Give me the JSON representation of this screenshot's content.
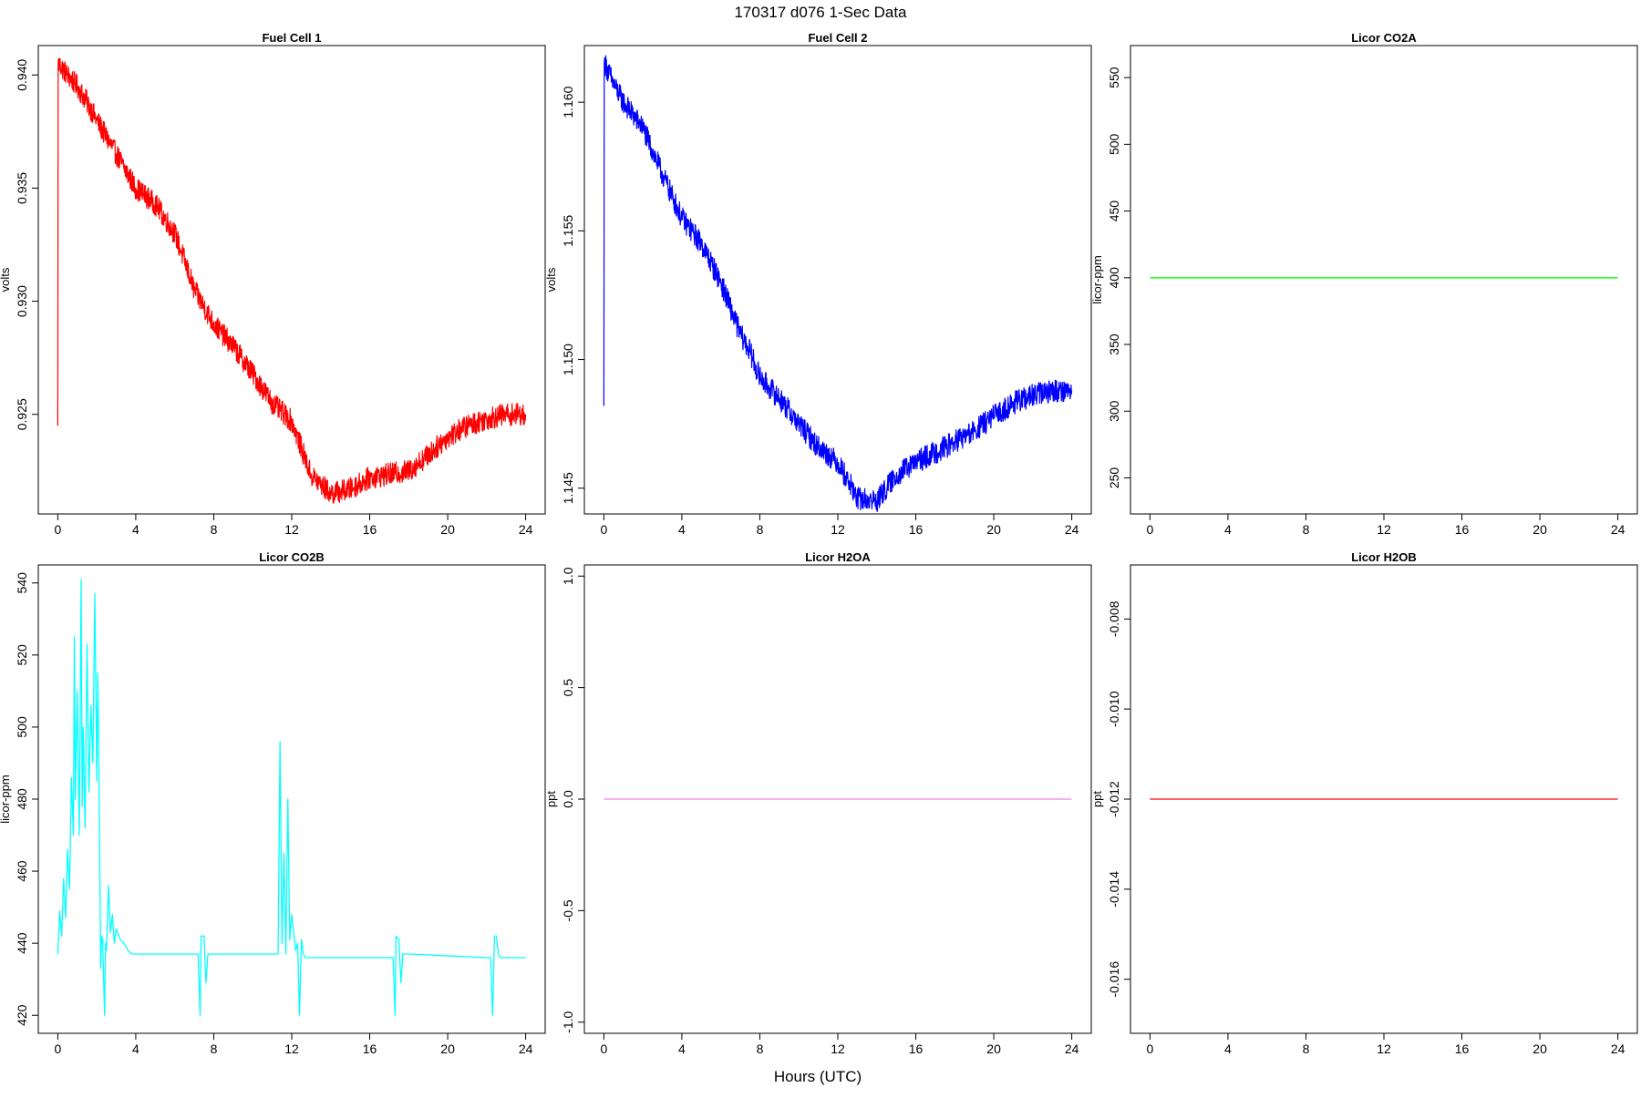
{
  "figure": {
    "title": "170317   d076   1-Sec Data",
    "xlabel": "Hours (UTC)"
  },
  "chart_data": [
    {
      "type": "line",
      "title": "Fuel Cell 1",
      "ylabel": "volts",
      "xlim": [
        -1,
        25
      ],
      "ylim": [
        0.9206,
        0.9413
      ],
      "xticks": [
        0,
        4,
        8,
        12,
        16,
        20,
        24
      ],
      "yticks": [
        0.925,
        0.93,
        0.935,
        0.94
      ],
      "ytick_labels": [
        "0.925",
        "0.930",
        "0.935",
        "0.940"
      ],
      "series": [
        {
          "color": "#ff0000",
          "noise": 0.0005,
          "x": [
            0,
            0.02,
            0.05,
            0.5,
            1,
            1.5,
            2,
            3,
            4,
            5,
            6,
            6.5,
            7,
            8,
            9,
            10,
            11,
            12,
            12.5,
            13,
            14,
            15,
            16,
            18,
            19,
            20,
            21,
            22,
            23,
            24
          ],
          "values": [
            0.9245,
            0.9405,
            0.9405,
            0.94,
            0.9395,
            0.9388,
            0.938,
            0.9365,
            0.935,
            0.9343,
            0.933,
            0.9318,
            0.9305,
            0.929,
            0.928,
            0.9268,
            0.9255,
            0.9247,
            0.9235,
            0.9223,
            0.9215,
            0.9217,
            0.9222,
            0.9225,
            0.9232,
            0.924,
            0.9245,
            0.9248,
            0.925,
            0.925
          ]
        }
      ]
    },
    {
      "type": "line",
      "title": "Fuel Cell 2",
      "ylabel": "volts",
      "xlim": [
        -1,
        25
      ],
      "ylim": [
        1.144,
        1.1622
      ],
      "xticks": [
        0,
        4,
        8,
        12,
        16,
        20,
        24
      ],
      "yticks": [
        1.145,
        1.15,
        1.155,
        1.16
      ],
      "ytick_labels": [
        "1.145",
        "1.150",
        "1.155",
        "1.160"
      ],
      "series": [
        {
          "color": "#0000ff",
          "noise": 0.00045,
          "x": [
            0,
            0.02,
            0.05,
            0.5,
            1,
            2,
            3,
            3.7,
            4,
            5,
            6,
            7,
            7.5,
            8,
            9,
            10,
            11,
            12,
            12.6,
            13,
            14,
            15,
            16,
            17,
            18,
            19,
            20,
            21,
            22,
            23,
            24
          ],
          "values": [
            1.1482,
            1.1615,
            1.1615,
            1.1607,
            1.16,
            1.159,
            1.1572,
            1.156,
            1.1555,
            1.1545,
            1.153,
            1.151,
            1.1503,
            1.1493,
            1.1485,
            1.1475,
            1.1466,
            1.146,
            1.1452,
            1.1446,
            1.1445,
            1.1455,
            1.146,
            1.1464,
            1.1468,
            1.1472,
            1.1478,
            1.1483,
            1.1486,
            1.1488,
            1.1488
          ]
        }
      ]
    },
    {
      "type": "line",
      "title": "Licor CO2A",
      "ylabel": "licor-ppm",
      "xlim": [
        -1,
        25
      ],
      "ylim": [
        223,
        574
      ],
      "xticks": [
        0,
        4,
        8,
        12,
        16,
        20,
        24
      ],
      "yticks": [
        250,
        300,
        350,
        400,
        450,
        500,
        550
      ],
      "ytick_labels": [
        "250",
        "300",
        "350",
        "400",
        "450",
        "500",
        "550"
      ],
      "series": [
        {
          "color": "#00ff00",
          "noise": 0,
          "x": [
            0,
            24
          ],
          "values": [
            400,
            400
          ]
        }
      ]
    },
    {
      "type": "line",
      "title": "Licor CO2B",
      "ylabel": "licor-ppm",
      "xlim": [
        -1,
        25
      ],
      "ylim": [
        415,
        545
      ],
      "xticks": [
        0,
        4,
        8,
        12,
        16,
        20,
        24
      ],
      "yticks": [
        420,
        440,
        460,
        480,
        500,
        520,
        540
      ],
      "ytick_labels": [
        "420",
        "440",
        "460",
        "480",
        "500",
        "520",
        "540"
      ],
      "series": [
        {
          "color": "#00ffff",
          "noise": 0,
          "x": [
            0,
            0.1,
            0.2,
            0.3,
            0.4,
            0.5,
            0.6,
            0.7,
            0.8,
            0.85,
            0.9,
            1.0,
            1.1,
            1.2,
            1.25,
            1.3,
            1.4,
            1.5,
            1.6,
            1.7,
            1.8,
            1.9,
            2.0,
            2.05,
            2.1,
            2.2,
            2.25,
            2.3,
            2.4,
            2.45,
            2.5,
            2.6,
            2.7,
            2.8,
            2.9,
            3.0,
            3.2,
            3.4,
            3.6,
            3.8,
            4.0,
            6.0,
            7.2,
            7.3,
            7.35,
            7.5,
            7.6,
            7.7,
            7.75,
            8.0,
            11.0,
            11.3,
            11.4,
            11.5,
            11.6,
            11.7,
            11.8,
            11.9,
            12.0,
            12.2,
            12.3,
            12.4,
            12.5,
            12.6,
            12.7,
            12.8,
            13.0,
            16.0,
            17.2,
            17.3,
            17.35,
            17.5,
            17.6,
            17.7,
            17.75,
            18.0,
            22.0,
            22.2,
            22.3,
            22.4,
            22.5,
            22.6,
            22.7,
            24.0
          ],
          "values": [
            437,
            449,
            442,
            458,
            447,
            466,
            455,
            486,
            470,
            525,
            480,
            510,
            470,
            541,
            478,
            500,
            472,
            523,
            482,
            506,
            490,
            537,
            485,
            515,
            495,
            433,
            442,
            441,
            420,
            440,
            438,
            456,
            443,
            448,
            440,
            444,
            441,
            440,
            438,
            437,
            437,
            437,
            437,
            420,
            442,
            442,
            429,
            437,
            437,
            437,
            437,
            437,
            496,
            440,
            465,
            437,
            480,
            441,
            448,
            438,
            440,
            420,
            441,
            437,
            436,
            436,
            436,
            436,
            436,
            420,
            442,
            441,
            429,
            437,
            437,
            437,
            436,
            436,
            420,
            442,
            442,
            437,
            436,
            436
          ]
        }
      ]
    },
    {
      "type": "line",
      "title": "Licor H2OA",
      "ylabel": "ppt",
      "xlim": [
        -1,
        25
      ],
      "ylim": [
        -1.05,
        1.05
      ],
      "xticks": [
        0,
        4,
        8,
        12,
        16,
        20,
        24
      ],
      "yticks": [
        -1.0,
        -0.5,
        0.0,
        0.5,
        1.0
      ],
      "ytick_labels": [
        "-1.0",
        "-0.5",
        "0.0",
        "0.5",
        "1.0"
      ],
      "series": [
        {
          "color": "#ee82ee",
          "noise": 0,
          "x": [
            0,
            24
          ],
          "values": [
            0,
            0
          ]
        }
      ]
    },
    {
      "type": "line",
      "title": "Licor H2OB",
      "ylabel": "ppt",
      "xlim": [
        -1,
        25
      ],
      "ylim": [
        -0.0172,
        -0.0068
      ],
      "xticks": [
        0,
        4,
        8,
        12,
        16,
        20,
        24
      ],
      "yticks": [
        -0.016,
        -0.014,
        -0.012,
        -0.01,
        -0.008
      ],
      "ytick_labels": [
        "-0.016",
        "-0.014",
        "-0.012",
        "-0.010",
        "-0.008"
      ],
      "series": [
        {
          "color": "#ff0000",
          "noise": 0,
          "x": [
            0,
            24
          ],
          "values": [
            -0.012,
            -0.012
          ]
        }
      ]
    }
  ]
}
